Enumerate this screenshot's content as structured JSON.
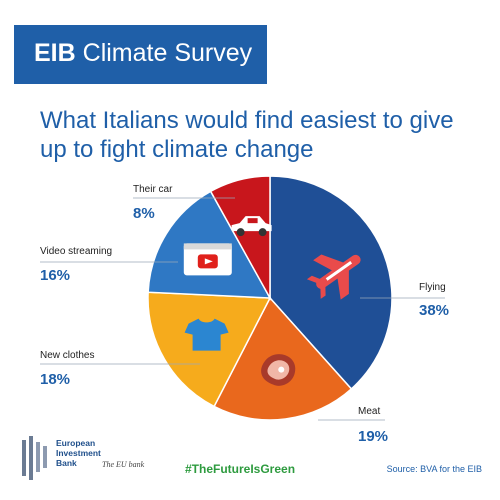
{
  "header": {
    "banner_bold": "EIB",
    "banner_rest": "Climate Survey"
  },
  "colors": {
    "brand_blue": "#1f5fa8",
    "hashtag_green": "#2e9b3f"
  },
  "chart_data": {
    "type": "pie",
    "title": "What Italians would find easiest to give up to fight climate change",
    "slices": [
      {
        "label": "Flying",
        "value": 38,
        "display": "38%",
        "color": "#1f4f96",
        "icon": "airplane-icon"
      },
      {
        "label": "Meat",
        "value": 19,
        "display": "19%",
        "color": "#e9681d",
        "icon": "steak-icon"
      },
      {
        "label": "New clothes",
        "value": 18,
        "display": "18%",
        "color": "#f6ab1c",
        "icon": "tshirt-icon"
      },
      {
        "label": "Video streaming",
        "value": 16,
        "display": "16%",
        "color": "#2f78c4",
        "icon": "video-player-icon"
      },
      {
        "label": "Their car",
        "value": 8,
        "display": "8%",
        "color": "#c8161c",
        "icon": "car-icon"
      }
    ],
    "start": "12 o'clock",
    "direction": "clockwise",
    "legend": "none"
  },
  "footer": {
    "logo_text": "European Investment Bank",
    "logo_tagline": "The EU bank",
    "hashtag": "#TheFutureIsGreen",
    "source": "Source: BVA for the EIB"
  }
}
